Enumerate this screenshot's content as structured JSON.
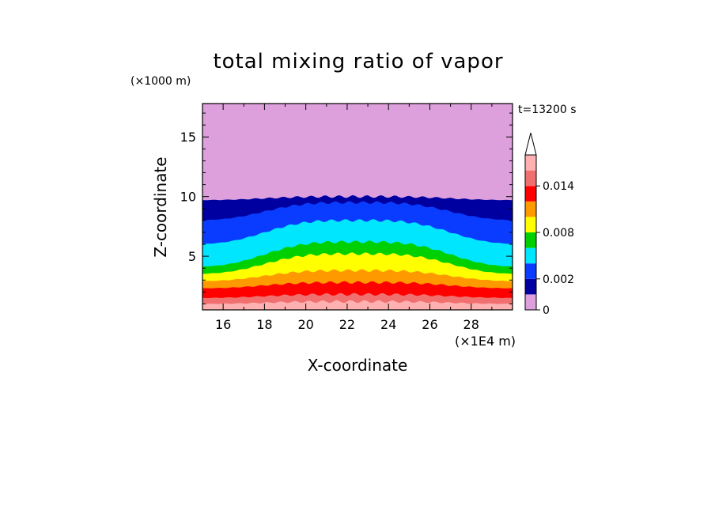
{
  "chart_data": {
    "type": "contour",
    "title": "total mixing ratio of vapor",
    "xlabel": "X-coordinate",
    "ylabel": "Z-coordinate",
    "x_unit": "(×1E4 m)",
    "y_unit": "(×1000 m)",
    "time_label": "t=13200 s",
    "xlim": [
      15,
      30
    ],
    "ylim": [
      0.5,
      17.8
    ],
    "x_ticks": [
      16,
      18,
      20,
      22,
      24,
      26,
      28
    ],
    "y_ticks": [
      5,
      10,
      15
    ],
    "colorbar": {
      "levels": [
        0,
        0.001,
        0.002,
        0.004,
        0.006,
        0.008,
        0.01,
        0.012,
        0.014,
        0.016
      ],
      "colors": [
        "#dda0dd",
        "#0000a0",
        "#0a3cff",
        "#00e6ff",
        "#00d000",
        "#ffff00",
        "#ff9900",
        "#ff0000",
        "#f07070",
        "#ffb0b0"
      ],
      "tick_labels": [
        "0",
        "0.002",
        "0.008",
        "0.014"
      ],
      "tick_values": [
        0,
        0.002,
        0.008,
        0.014
      ],
      "extend": "max"
    },
    "layers": [
      {
        "level": "<0.001",
        "color": "#dda0dd",
        "top": 17.8
      },
      {
        "level": "0.001",
        "color": "#0000a0",
        "top_edge": 9.7,
        "top_center": 10.0
      },
      {
        "level": "0.002",
        "color": "#0a3cff",
        "top_edge": 8.0,
        "top_center": 9.5
      },
      {
        "level": "0.004",
        "color": "#00e6ff",
        "top_edge": 6.0,
        "top_center": 8.0
      },
      {
        "level": "0.006",
        "color": "#00d000",
        "top_edge": 4.1,
        "top_center": 6.2
      },
      {
        "level": "0.008",
        "color": "#ffff00",
        "top_edge": 3.5,
        "top_center": 5.2
      },
      {
        "level": "0.010",
        "color": "#ff9900",
        "top_edge": 2.9,
        "top_center": 3.8
      },
      {
        "level": "0.012",
        "color": "#ff0000",
        "top_edge": 2.3,
        "top_center": 2.8
      },
      {
        "level": "0.014",
        "color": "#f07070",
        "top_edge": 1.5,
        "top_center": 1.8
      },
      {
        "level": "0.016",
        "color": "#ffb0b0",
        "top_edge": 1.0,
        "top_center": 1.2
      }
    ]
  }
}
